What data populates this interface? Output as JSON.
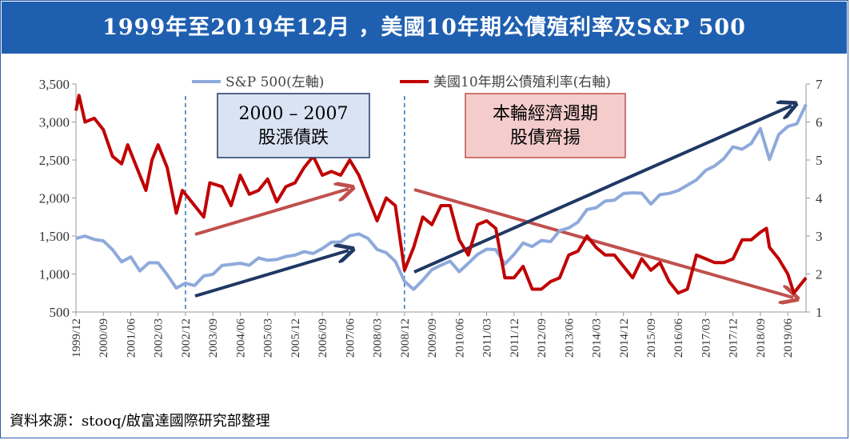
{
  "title": "1999年至2019年12月 ，美國10年期公債殖利率及S&P 500",
  "source": "資料來源：stooq/啟富達國際研究部整理",
  "colors": {
    "title_bg": "#1f5fb0",
    "sp500": "#8eaadb",
    "yield": "#c00000",
    "blue_arrow": "#1f3864",
    "red_arrow": "#c0504d",
    "vline": "#2e75b6"
  },
  "chart_data": {
    "type": "line",
    "title": "1999年至2019年12月 ，美國10年期公債殖利率及S&P 500",
    "x_tick_labels": [
      "1999/12",
      "2000/09",
      "2001/06",
      "2002/03",
      "2002/12",
      "2003/09",
      "2004/06",
      "2005/03",
      "2005/12",
      "2006/09",
      "2007/06",
      "2008/03",
      "2008/12",
      "2009/09",
      "2010/06",
      "2011/03",
      "2011/12",
      "2012/09",
      "2013/06",
      "2014/03",
      "2014/12",
      "2015/09",
      "2016/06",
      "2017/03",
      "2017/12",
      "2018/09",
      "2019/06"
    ],
    "y_left": {
      "range": [
        500,
        3500
      ],
      "ticks": [
        "500",
        "1,000",
        "1,500",
        "2,000",
        "2,500",
        "3,000",
        "3,500"
      ]
    },
    "y_right": {
      "range": [
        1,
        7
      ],
      "ticks": [
        "1",
        "2",
        "3",
        "4",
        "5",
        "6",
        "7"
      ]
    },
    "legend": {
      "position": "top-center",
      "entries": [
        "S&P 500(左軸)",
        "美國10年期公債殖利率(右軸)"
      ]
    },
    "series": [
      {
        "name": "S&P 500(左軸)",
        "axis": "left",
        "points": [
          [
            "1999-12",
            1469
          ],
          [
            "2000-03",
            1499
          ],
          [
            "2000-06",
            1455
          ],
          [
            "2000-09",
            1436
          ],
          [
            "2000-12",
            1320
          ],
          [
            "2001-03",
            1160
          ],
          [
            "2001-06",
            1224
          ],
          [
            "2001-09",
            1041
          ],
          [
            "2001-12",
            1148
          ],
          [
            "2002-03",
            1147
          ],
          [
            "2002-06",
            990
          ],
          [
            "2002-09",
            815
          ],
          [
            "2002-12",
            880
          ],
          [
            "2003-03",
            848
          ],
          [
            "2003-06",
            975
          ],
          [
            "2003-09",
            996
          ],
          [
            "2003-12",
            1112
          ],
          [
            "2004-03",
            1126
          ],
          [
            "2004-06",
            1141
          ],
          [
            "2004-09",
            1115
          ],
          [
            "2004-12",
            1212
          ],
          [
            "2005-03",
            1181
          ],
          [
            "2005-06",
            1191
          ],
          [
            "2005-09",
            1229
          ],
          [
            "2005-12",
            1248
          ],
          [
            "2006-03",
            1295
          ],
          [
            "2006-06",
            1270
          ],
          [
            "2006-09",
            1336
          ],
          [
            "2006-12",
            1418
          ],
          [
            "2007-03",
            1421
          ],
          [
            "2007-06",
            1503
          ],
          [
            "2007-09",
            1527
          ],
          [
            "2007-12",
            1468
          ],
          [
            "2008-03",
            1323
          ],
          [
            "2008-06",
            1280
          ],
          [
            "2008-09",
            1166
          ],
          [
            "2008-12",
            903
          ],
          [
            "2009-03",
            798
          ],
          [
            "2009-06",
            919
          ],
          [
            "2009-09",
            1057
          ],
          [
            "2009-12",
            1115
          ],
          [
            "2010-03",
            1169
          ],
          [
            "2010-06",
            1031
          ],
          [
            "2010-09",
            1141
          ],
          [
            "2010-12",
            1258
          ],
          [
            "2011-03",
            1326
          ],
          [
            "2011-06",
            1321
          ],
          [
            "2011-09",
            1131
          ],
          [
            "2011-12",
            1258
          ],
          [
            "2012-03",
            1408
          ],
          [
            "2012-06",
            1362
          ],
          [
            "2012-09",
            1441
          ],
          [
            "2012-12",
            1426
          ],
          [
            "2013-03",
            1569
          ],
          [
            "2013-06",
            1606
          ],
          [
            "2013-09",
            1682
          ],
          [
            "2013-12",
            1848
          ],
          [
            "2014-03",
            1872
          ],
          [
            "2014-06",
            1960
          ],
          [
            "2014-09",
            1972
          ],
          [
            "2014-12",
            2059
          ],
          [
            "2015-03",
            2068
          ],
          [
            "2015-06",
            2063
          ],
          [
            "2015-09",
            1920
          ],
          [
            "2015-12",
            2044
          ],
          [
            "2016-03",
            2060
          ],
          [
            "2016-06",
            2099
          ],
          [
            "2016-09",
            2168
          ],
          [
            "2016-12",
            2239
          ],
          [
            "2017-03",
            2363
          ],
          [
            "2017-06",
            2423
          ],
          [
            "2017-09",
            2519
          ],
          [
            "2017-12",
            2674
          ],
          [
            "2018-03",
            2641
          ],
          [
            "2018-06",
            2718
          ],
          [
            "2018-09",
            2914
          ],
          [
            "2018-12",
            2507
          ],
          [
            "2019-03",
            2834
          ],
          [
            "2019-06",
            2942
          ],
          [
            "2019-09",
            2977
          ],
          [
            "2019-12",
            3231
          ]
        ]
      },
      {
        "name": "美國10年期公債殖利率(右軸)",
        "axis": "right",
        "points": [
          [
            "1999-12",
            6.3
          ],
          [
            "2000-01",
            6.7
          ],
          [
            "2000-03",
            6.0
          ],
          [
            "2000-06",
            6.1
          ],
          [
            "2000-09",
            5.8
          ],
          [
            "2000-12",
            5.1
          ],
          [
            "2001-03",
            4.9
          ],
          [
            "2001-05",
            5.4
          ],
          [
            "2001-09",
            4.6
          ],
          [
            "2001-11",
            4.2
          ],
          [
            "2002-01",
            5.0
          ],
          [
            "2002-03",
            5.4
          ],
          [
            "2002-06",
            4.8
          ],
          [
            "2002-09",
            3.6
          ],
          [
            "2002-11",
            4.2
          ],
          [
            "2003-03",
            3.8
          ],
          [
            "2003-06",
            3.5
          ],
          [
            "2003-08",
            4.4
          ],
          [
            "2003-12",
            4.3
          ],
          [
            "2004-03",
            3.8
          ],
          [
            "2004-06",
            4.6
          ],
          [
            "2004-09",
            4.1
          ],
          [
            "2004-12",
            4.2
          ],
          [
            "2005-03",
            4.5
          ],
          [
            "2005-06",
            3.9
          ],
          [
            "2005-09",
            4.3
          ],
          [
            "2005-12",
            4.4
          ],
          [
            "2006-03",
            4.8
          ],
          [
            "2006-06",
            5.1
          ],
          [
            "2006-09",
            4.6
          ],
          [
            "2006-12",
            4.7
          ],
          [
            "2007-03",
            4.6
          ],
          [
            "2007-06",
            5.0
          ],
          [
            "2007-09",
            4.6
          ],
          [
            "2007-12",
            4.0
          ],
          [
            "2008-03",
            3.4
          ],
          [
            "2008-06",
            4.0
          ],
          [
            "2008-09",
            3.8
          ],
          [
            "2008-12",
            2.1
          ],
          [
            "2009-03",
            2.7
          ],
          [
            "2009-06",
            3.5
          ],
          [
            "2009-09",
            3.3
          ],
          [
            "2009-12",
            3.8
          ],
          [
            "2010-03",
            3.8
          ],
          [
            "2010-06",
            2.9
          ],
          [
            "2010-09",
            2.5
          ],
          [
            "2010-12",
            3.3
          ],
          [
            "2011-03",
            3.4
          ],
          [
            "2011-06",
            3.2
          ],
          [
            "2011-09",
            1.9
          ],
          [
            "2011-12",
            1.9
          ],
          [
            "2012-03",
            2.2
          ],
          [
            "2012-06",
            1.6
          ],
          [
            "2012-09",
            1.6
          ],
          [
            "2012-12",
            1.8
          ],
          [
            "2013-03",
            1.9
          ],
          [
            "2013-06",
            2.5
          ],
          [
            "2013-09",
            2.6
          ],
          [
            "2013-12",
            3.0
          ],
          [
            "2014-03",
            2.7
          ],
          [
            "2014-06",
            2.5
          ],
          [
            "2014-09",
            2.5
          ],
          [
            "2014-12",
            2.2
          ],
          [
            "2015-03",
            1.9
          ],
          [
            "2015-06",
            2.4
          ],
          [
            "2015-09",
            2.1
          ],
          [
            "2015-12",
            2.3
          ],
          [
            "2016-03",
            1.8
          ],
          [
            "2016-06",
            1.5
          ],
          [
            "2016-09",
            1.6
          ],
          [
            "2016-12",
            2.5
          ],
          [
            "2017-03",
            2.4
          ],
          [
            "2017-06",
            2.3
          ],
          [
            "2017-09",
            2.3
          ],
          [
            "2017-12",
            2.4
          ],
          [
            "2018-03",
            2.9
          ],
          [
            "2018-06",
            2.9
          ],
          [
            "2018-09",
            3.1
          ],
          [
            "2018-11",
            3.2
          ],
          [
            "2018-12",
            2.7
          ],
          [
            "2019-03",
            2.4
          ],
          [
            "2019-06",
            2.0
          ],
          [
            "2019-08",
            1.5
          ],
          [
            "2019-10",
            1.7
          ],
          [
            "2019-12",
            1.9
          ]
        ]
      }
    ],
    "annotations": [
      {
        "text_lines": [
          "2000 – 2007",
          "股漲債跌"
        ],
        "box_color": "#dae3f3"
      },
      {
        "text_lines": [
          "本輪經濟週期",
          "股債齊揚"
        ],
        "box_color": "#f4cccc"
      }
    ],
    "grid": false
  }
}
